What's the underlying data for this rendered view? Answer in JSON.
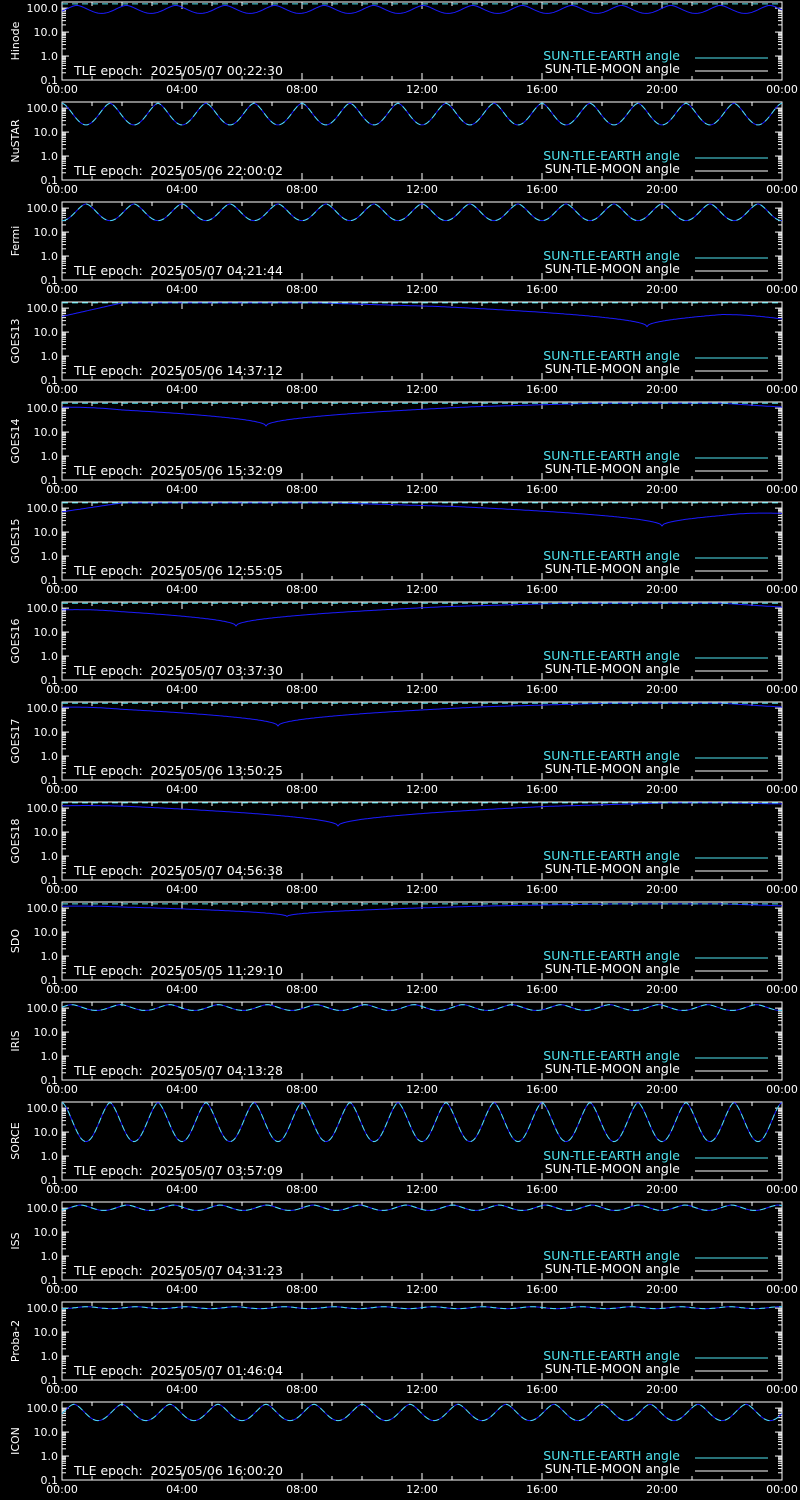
{
  "colors": {
    "background": "#000000",
    "axes": "#ffffff",
    "sun_tle_earth": "#4fe3ef",
    "sun_tle_moon": "#1b1bff"
  },
  "legend": {
    "earth_label": "SUN-TLE-EARTH angle",
    "moon_label": "SUN-TLE-MOON angle"
  },
  "epoch_prefix": "TLE epoch: ",
  "chart_data": {
    "type": "line",
    "x_ticks": [
      "00:00",
      "04:00",
      "08:00",
      "12:00",
      "16:00",
      "20:00",
      "00:00"
    ],
    "x_range_hours": [
      0,
      24
    ],
    "y_scale": "log",
    "y_range": [
      0.1,
      180
    ],
    "y_ticks": [
      "100.0",
      "10.0",
      "1.0",
      "0.1"
    ],
    "legend_placement": "bottom-right",
    "panels": [
      {
        "name": "Hinode",
        "epoch": "2025/05/07 00:22:30",
        "earth": {
          "kind": "flat",
          "value": 150
        },
        "moon": {
          "kind": "periodic",
          "period_hours": 1.65,
          "min": 60,
          "max": 130,
          "phase": 0.2
        }
      },
      {
        "name": "NuSTAR",
        "epoch": "2025/05/06 22:00:02",
        "earth": {
          "kind": "periodic",
          "period_hours": 1.6,
          "min": 20,
          "max": 160,
          "phase": 0.5
        },
        "moon": {
          "kind": "periodic",
          "period_hours": 1.6,
          "min": 20,
          "max": 160,
          "phase": 0.5
        }
      },
      {
        "name": "Fermi",
        "epoch": "2025/05/07 04:21:44",
        "earth": {
          "kind": "periodic",
          "period_hours": 1.6,
          "min": 30,
          "max": 150,
          "phase": 0.0
        },
        "moon": {
          "kind": "periodic",
          "period_hours": 1.6,
          "min": 30,
          "max": 150,
          "phase": 0.0
        }
      },
      {
        "name": "GOES13",
        "epoch": "2025/05/06 14:37:12",
        "earth": {
          "kind": "flat",
          "value": 165
        },
        "moon": {
          "kind": "dip",
          "center_hours": 19.5,
          "min": 17,
          "max": 165,
          "start": 45,
          "end": 35
        }
      },
      {
        "name": "GOES14",
        "epoch": "2025/05/06 15:32:09",
        "earth": {
          "kind": "flat",
          "value": 160
        },
        "moon": {
          "kind": "dip",
          "center_hours": 6.8,
          "min": 18,
          "max": 160,
          "start": 110,
          "end": 110
        }
      },
      {
        "name": "GOES15",
        "epoch": "2025/05/06 12:55:05",
        "earth": {
          "kind": "flat",
          "value": 165
        },
        "moon": {
          "kind": "dip",
          "center_hours": 20.0,
          "min": 18,
          "max": 165,
          "start": 70,
          "end": 60
        }
      },
      {
        "name": "GOES16",
        "epoch": "2025/05/07 03:37:30",
        "earth": {
          "kind": "flat",
          "value": 160
        },
        "moon": {
          "kind": "dip",
          "center_hours": 5.8,
          "min": 18,
          "max": 160,
          "start": 85,
          "end": 110
        }
      },
      {
        "name": "GOES17",
        "epoch": "2025/05/06 13:50:25",
        "earth": {
          "kind": "flat",
          "value": 160
        },
        "moon": {
          "kind": "dip",
          "center_hours": 7.2,
          "min": 18,
          "max": 160,
          "start": 110,
          "end": 110
        }
      },
      {
        "name": "GOES18",
        "epoch": "2025/05/07 04:56:38",
        "earth": {
          "kind": "flat",
          "value": 165
        },
        "moon": {
          "kind": "dip",
          "center_hours": 9.2,
          "min": 18,
          "max": 165,
          "start": 125,
          "end": 150
        }
      },
      {
        "name": "SDO",
        "epoch": "2025/05/05 11:29:10",
        "earth": {
          "kind": "flat",
          "value": 150
        },
        "moon": {
          "kind": "dip",
          "center_hours": 7.5,
          "min": 45,
          "max": 150,
          "start": 120,
          "end": 125
        }
      },
      {
        "name": "IRIS",
        "epoch": "2025/05/07 04:13:28",
        "earth": {
          "kind": "periodic",
          "period_hours": 1.63,
          "min": 80,
          "max": 140,
          "phase": 0.3
        },
        "moon": {
          "kind": "periodic",
          "period_hours": 1.63,
          "min": 80,
          "max": 140,
          "phase": 0.3
        }
      },
      {
        "name": "SORCE",
        "epoch": "2025/05/07 03:57:09",
        "earth": {
          "kind": "periodic",
          "period_hours": 1.6,
          "min": 4,
          "max": 170,
          "phase": 0.5
        },
        "moon": {
          "kind": "periodic",
          "period_hours": 1.6,
          "min": 4,
          "max": 170,
          "phase": 0.5
        }
      },
      {
        "name": "ISS",
        "epoch": "2025/05/07 04:31:23",
        "earth": {
          "kind": "periodic",
          "period_hours": 1.55,
          "min": 80,
          "max": 135,
          "phase": 0.1
        },
        "moon": {
          "kind": "periodic",
          "period_hours": 1.55,
          "min": 80,
          "max": 135,
          "phase": 0.1
        }
      },
      {
        "name": "Proba-2",
        "epoch": "2025/05/07 01:46:04",
        "earth": {
          "kind": "periodic",
          "period_hours": 1.65,
          "min": 95,
          "max": 115,
          "phase": 0.0
        },
        "moon": {
          "kind": "periodic",
          "period_hours": 1.65,
          "min": 95,
          "max": 115,
          "phase": 0.0
        }
      },
      {
        "name": "ICON",
        "epoch": "2025/05/06 16:00:20",
        "earth": {
          "kind": "periodic",
          "period_hours": 1.6,
          "min": 30,
          "max": 145,
          "phase": 0.25
        },
        "moon": {
          "kind": "periodic",
          "period_hours": 1.6,
          "min": 30,
          "max": 145,
          "phase": 0.25
        }
      }
    ]
  }
}
